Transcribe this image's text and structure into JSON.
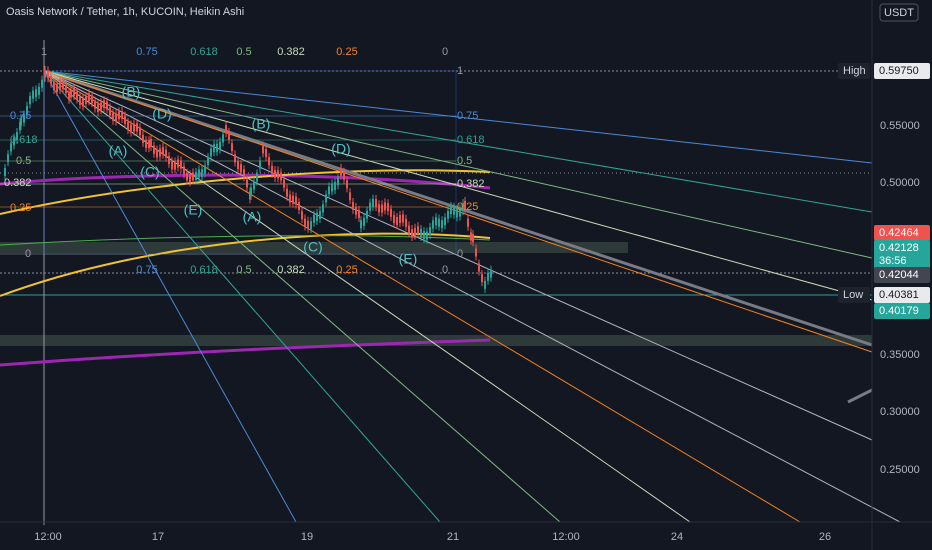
{
  "header": {
    "title": "Oasis Network / Tether, 1h, KUCOIN, Heikin Ashi",
    "currency": "USDT"
  },
  "price_axis": [
    "0.55000",
    "0.50000",
    "0.35000",
    "0.30000",
    "0.25000"
  ],
  "time_axis": [
    "12:00",
    "17",
    "19",
    "21",
    "12:00",
    "24",
    "26"
  ],
  "price_tags": {
    "high_label": "High",
    "high": "0.59750",
    "red": "0.42464",
    "green": "0.42128",
    "countdown": "36:56",
    "last": "0.42044",
    "low_label": "Low",
    "low": "0.40381",
    "green2": "0.40179"
  },
  "fib_top": [
    "1",
    "0.75",
    "0.618",
    "0.5",
    "0.382",
    "0.25",
    "0"
  ],
  "fib_right": [
    "1",
    "0.75",
    "0.618",
    "0.5",
    "0.382",
    "0.25",
    "0"
  ],
  "fib_left": [
    "0.75",
    "0.618",
    "0.5",
    "0.382",
    "0.25",
    "0"
  ],
  "fib_bottom": [
    "0.75",
    "0.618",
    "0.5",
    "0.382",
    "0.25",
    "0"
  ],
  "waves": [
    "(B)",
    "(D)",
    "(A)",
    "(C)",
    "(E)",
    "(B)",
    "(D)",
    "(A)",
    "(C)",
    "(E)"
  ]
}
